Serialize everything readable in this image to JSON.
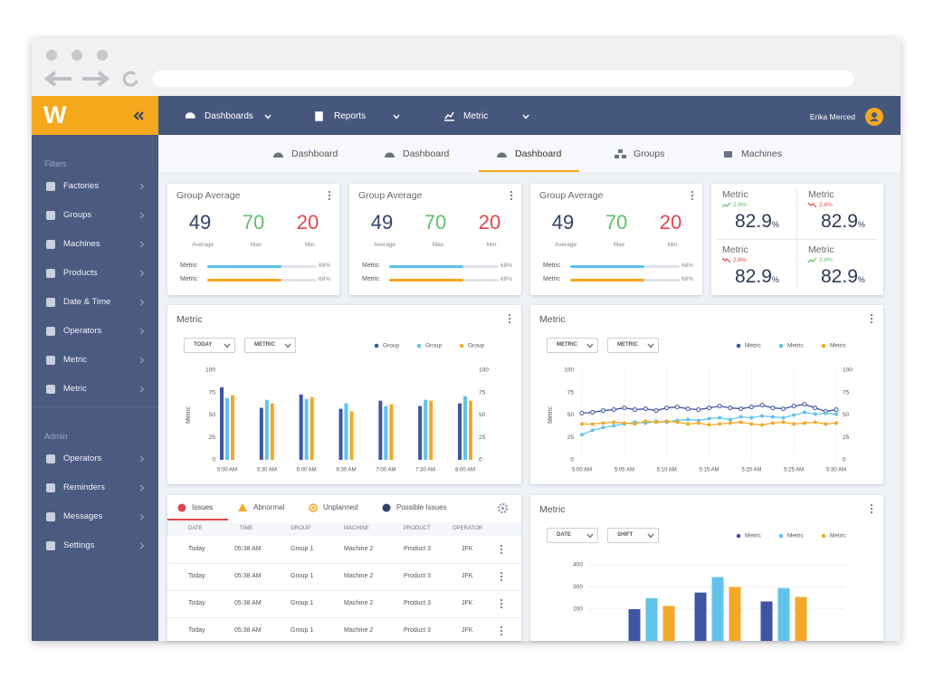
{
  "logo": "W",
  "nav": {
    "items": [
      "Dashboards",
      "Reports",
      "Metric"
    ],
    "user": "Erika Merced"
  },
  "tabs": {
    "items": [
      "Dashboard",
      "Dashboard",
      "Dashboard",
      "Groups",
      "Machines"
    ],
    "active": 2
  },
  "sidebar": {
    "filters_title": "Filters",
    "filters": [
      "Factories",
      "Groups",
      "Machines",
      "Products",
      "Date & Time",
      "Operators",
      "Metric",
      "Metric"
    ],
    "admin_title": "Admin",
    "admin": [
      "Operators",
      "Reminders",
      "Messages",
      "Settings"
    ]
  },
  "group_cards": [
    {
      "title": "Group Average",
      "stats": [
        {
          "value": 49,
          "label": "Average",
          "color": "#33426b"
        },
        {
          "value": 70,
          "label": "Max",
          "color": "#5cc06d"
        },
        {
          "value": 20,
          "label": "Min.",
          "color": "#e0474c"
        }
      ],
      "bars": [
        {
          "label": "Metric",
          "value": 68,
          "value_label": "68%",
          "color": "#5cc3ea"
        },
        {
          "label": "Metric",
          "value": 68,
          "value_label": "68%",
          "color": "#f5a623"
        }
      ]
    },
    {
      "title": "Group Average",
      "stats": [
        {
          "value": 49,
          "label": "Average",
          "color": "#33426b"
        },
        {
          "value": 70,
          "label": "Max",
          "color": "#5cc06d"
        },
        {
          "value": 20,
          "label": "Min.",
          "color": "#e0474c"
        }
      ],
      "bars": [
        {
          "label": "Metric",
          "value": 68,
          "value_label": "68%",
          "color": "#5cc3ea"
        },
        {
          "label": "Metric",
          "value": 68,
          "value_label": "68%",
          "color": "#f5a623"
        }
      ]
    },
    {
      "title": "Group Average",
      "stats": [
        {
          "value": 49,
          "label": "Average",
          "color": "#33426b"
        },
        {
          "value": 70,
          "label": "Max",
          "color": "#5cc06d"
        },
        {
          "value": 20,
          "label": "Min.",
          "color": "#e0474c"
        }
      ],
      "bars": [
        {
          "label": "Metric",
          "value": 68,
          "value_label": "68%",
          "color": "#5cc3ea"
        },
        {
          "label": "Metric",
          "value": 68,
          "value_label": "68%",
          "color": "#f5a623"
        }
      ]
    }
  ],
  "metric_card": {
    "items": [
      {
        "title": "Metric",
        "change": "2.8%",
        "trend": "up",
        "value": 82.9,
        "unit": "%"
      },
      {
        "title": "Metric",
        "change": "2.8%",
        "trend": "down",
        "value": 82.9,
        "unit": "%"
      },
      {
        "title": "Metric",
        "change": "2.8%",
        "trend": "down",
        "value": 82.9,
        "unit": "%"
      },
      {
        "title": "Metric",
        "change": "2.8%",
        "trend": "up",
        "value": 82.9,
        "unit": "%"
      }
    ]
  },
  "chart_data": [
    {
      "type": "bar",
      "title": "Metric",
      "controls": [
        "TODAY",
        "METRIC"
      ],
      "y_label": "Metric",
      "categories": [
        "5:00 AM",
        "5:30 AM",
        "6:00 AM",
        "6:30 AM",
        "7:00 AM",
        "7:30 AM",
        "8:00 AM"
      ],
      "series": [
        {
          "name": "Group",
          "color": "#3d55a3",
          "values": [
            81,
            58,
            73,
            57,
            66,
            60,
            63
          ]
        },
        {
          "name": "Group",
          "color": "#62c3ea",
          "values": [
            69,
            67,
            68,
            63,
            60,
            67,
            71
          ]
        },
        {
          "name": "Group",
          "color": "#f4a828",
          "values": [
            72,
            63,
            70,
            54,
            62,
            66,
            66
          ]
        }
      ],
      "ylim": [
        0,
        100
      ],
      "yticks": [
        0,
        25,
        50,
        75,
        100
      ],
      "y2lim": [
        0,
        100
      ],
      "y2ticks": [
        0,
        25,
        50,
        75,
        100
      ],
      "legend": "top-right",
      "grid": false
    },
    {
      "type": "line",
      "title": "Metric",
      "controls": [
        "METRIC",
        "METRIC"
      ],
      "y_label": "Metric",
      "categories": [
        "5:00 AM",
        null,
        null,
        null,
        "5:05 AM",
        null,
        null,
        null,
        "5:10 AM",
        null,
        null,
        null,
        "5:15 AM",
        null,
        null,
        null,
        "5:20 AM",
        null,
        null,
        null,
        "5:25 AM",
        null,
        null,
        null,
        "5:30 AM"
      ],
      "series": [
        {
          "name": "Metric",
          "color": "#3d55a3",
          "values": [
            52,
            53,
            55,
            56,
            58,
            56,
            57,
            55,
            58,
            59,
            57,
            56,
            58,
            60,
            58,
            57,
            59,
            61,
            58,
            57,
            60,
            62,
            58,
            54,
            56
          ]
        },
        {
          "name": "Metric",
          "color": "#62c3ea",
          "values": [
            28,
            33,
            36,
            38,
            40,
            42,
            41,
            43,
            42,
            44,
            45,
            44,
            46,
            47,
            45,
            48,
            47,
            49,
            48,
            47,
            50,
            53,
            51,
            52,
            51
          ]
        },
        {
          "name": "Metric",
          "color": "#f4a828",
          "values": [
            40,
            40,
            41,
            42,
            41,
            40,
            43,
            42,
            43,
            42,
            40,
            41,
            39,
            40,
            41,
            42,
            40,
            39,
            41,
            42,
            40,
            41,
            42,
            40,
            41
          ]
        }
      ],
      "ylim": [
        0,
        100
      ],
      "yticks": [
        0,
        25,
        50,
        75,
        100
      ],
      "y2lim": [
        0,
        100
      ],
      "y2ticks": [
        0,
        25,
        50,
        75,
        100
      ],
      "legend": "top-right",
      "grid": "x"
    },
    {
      "type": "bar",
      "title": "Metric",
      "controls": [
        "DATE",
        "SHIFT"
      ],
      "categories": [
        null,
        null,
        null
      ],
      "series": [
        {
          "name": "Metric",
          "color": "#3d55a3",
          "values": [
            200,
            275,
            235
          ]
        },
        {
          "name": "Metric",
          "color": "#62c3ea",
          "values": [
            250,
            345,
            295
          ]
        },
        {
          "name": "Metric",
          "color": "#f4a828",
          "values": [
            215,
            300,
            255
          ]
        }
      ],
      "ylim": [
        0,
        400
      ],
      "yticks": [
        200,
        300,
        400
      ],
      "legend": "top-right",
      "grid": true
    }
  ],
  "table": {
    "tabs": [
      "Issues",
      "Abnormal",
      "Unplanned",
      "Possible Issues"
    ],
    "active": 0,
    "columns": [
      "DATE",
      "TIME",
      "GROUP",
      "MACHINE",
      "PRODUCT",
      "OPERATOR"
    ],
    "rows": [
      [
        "Today",
        "05:38 AM",
        "Group 1",
        "Machine 2",
        "Product 3",
        "JFK"
      ],
      [
        "Today",
        "05:38 AM",
        "Group 1",
        "Machine 2",
        "Product 3",
        "JFK"
      ],
      [
        "Today",
        "05:38 AM",
        "Group 1",
        "Machine 2",
        "Product 3",
        "JFK"
      ],
      [
        "Today",
        "05:38 AM",
        "Group 1",
        "Machine 2",
        "Product 3",
        "JFK"
      ]
    ]
  }
}
